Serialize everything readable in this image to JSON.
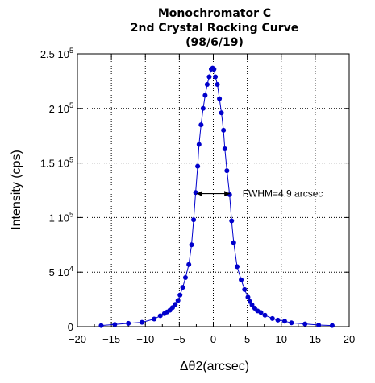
{
  "chart_data": {
    "type": "line",
    "title_lines": [
      "Monochromator C",
      "2nd Crystal Rocking Curve",
      "(98/6/19)"
    ],
    "xlabel": "Δθ2(arcsec)",
    "ylabel": "Intensity (cps)",
    "xlim": [
      -20,
      20
    ],
    "ylim": [
      0,
      250000
    ],
    "x_ticks": [
      -20,
      -15,
      -10,
      -5,
      0,
      5,
      10,
      15,
      20
    ],
    "y_ticks": [
      {
        "value": 0,
        "mantissa": "0",
        "exp": ""
      },
      {
        "value": 50000,
        "mantissa": "5 10",
        "exp": "4"
      },
      {
        "value": 100000,
        "mantissa": "1 10",
        "exp": "5"
      },
      {
        "value": 150000,
        "mantissa": "1.5 10",
        "exp": "5"
      },
      {
        "value": 200000,
        "mantissa": "2 10",
        "exp": "5"
      },
      {
        "value": 250000,
        "mantissa": "2.5 10",
        "exp": "5"
      }
    ],
    "grid": true,
    "marker_color": "#0000cc",
    "line_color": "#0000cc",
    "series": [
      {
        "x": [
          -16.5,
          -14.5,
          -12.5,
          -10.5,
          -8.7,
          -7.8,
          -7.2,
          -6.8,
          -6.4,
          -6.0,
          -5.6,
          -5.2,
          -4.9,
          -4.5,
          -4.1,
          -3.6,
          -3.2,
          -2.9,
          -2.6,
          -2.3,
          -2.1,
          -1.8,
          -1.5,
          -1.2,
          -0.9,
          -0.6,
          -0.3,
          -0.1,
          0.1,
          0.3,
          0.6,
          0.9,
          1.2,
          1.5,
          1.7,
          2.0,
          2.4,
          2.7,
          3.0,
          3.5,
          4.1,
          4.6,
          5.1,
          5.4,
          5.7,
          6.1,
          6.5,
          7.0,
          7.6,
          8.7,
          9.5,
          10.5,
          11.5,
          13.5,
          15.5,
          17.5
        ],
        "y": [
          1000,
          2000,
          3000,
          4000,
          7000,
          10000,
          12000,
          13500,
          15000,
          17500,
          20500,
          24000,
          29000,
          36000,
          45000,
          57000,
          75000,
          98000,
          123000,
          147000,
          167000,
          185000,
          200000,
          212000,
          222000,
          229000,
          236000,
          237000,
          236000,
          229000,
          222000,
          209000,
          196000,
          180000,
          163000,
          143000,
          121000,
          97000,
          77000,
          55000,
          43000,
          34000,
          27000,
          23000,
          20000,
          17000,
          14500,
          13000,
          10500,
          7500,
          6000,
          5000,
          3500,
          2500,
          1500,
          1000
        ]
      }
    ],
    "annotation": {
      "text": "FWHM=4.9 arcsec",
      "x_from": -2.45,
      "x_to": 2.45,
      "y": 122000,
      "text_x": 4.3
    }
  }
}
